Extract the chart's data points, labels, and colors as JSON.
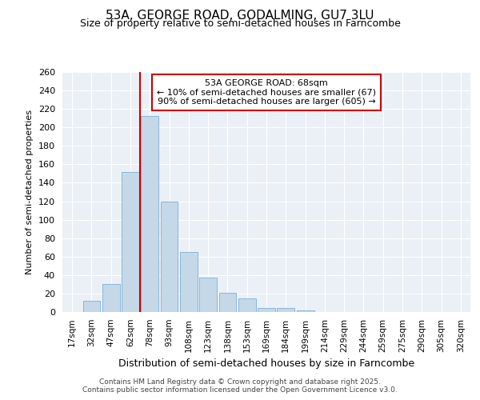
{
  "title1": "53A, GEORGE ROAD, GODALMING, GU7 3LU",
  "title2": "Size of property relative to semi-detached houses in Farncombe",
  "xlabel": "Distribution of semi-detached houses by size in Farncombe",
  "ylabel": "Number of semi-detached properties",
  "bar_labels": [
    "17sqm",
    "32sqm",
    "47sqm",
    "62sqm",
    "78sqm",
    "93sqm",
    "108sqm",
    "123sqm",
    "138sqm",
    "153sqm",
    "169sqm",
    "184sqm",
    "199sqm",
    "214sqm",
    "229sqm",
    "244sqm",
    "259sqm",
    "275sqm",
    "290sqm",
    "305sqm",
    "320sqm"
  ],
  "bar_values": [
    0,
    12,
    30,
    152,
    212,
    120,
    65,
    37,
    21,
    15,
    4,
    4,
    2,
    0,
    0,
    0,
    0,
    0,
    0,
    0,
    0
  ],
  "bar_color": "#c5d8e8",
  "bar_edgecolor": "#7bafd4",
  "vline_color": "#cc0000",
  "annotation_title": "53A GEORGE ROAD: 68sqm",
  "annotation_line1": "← 10% of semi-detached houses are smaller (67)",
  "annotation_line2": "90% of semi-detached houses are larger (605) →",
  "annotation_box_color": "#cc0000",
  "ylim": [
    0,
    260
  ],
  "yticks": [
    0,
    20,
    40,
    60,
    80,
    100,
    120,
    140,
    160,
    180,
    200,
    220,
    240,
    260
  ],
  "footnote1": "Contains HM Land Registry data © Crown copyright and database right 2025.",
  "footnote2": "Contains public sector information licensed under the Open Government Licence v3.0.",
  "bg_color": "#eaf0f6",
  "grid_color": "#ffffff"
}
